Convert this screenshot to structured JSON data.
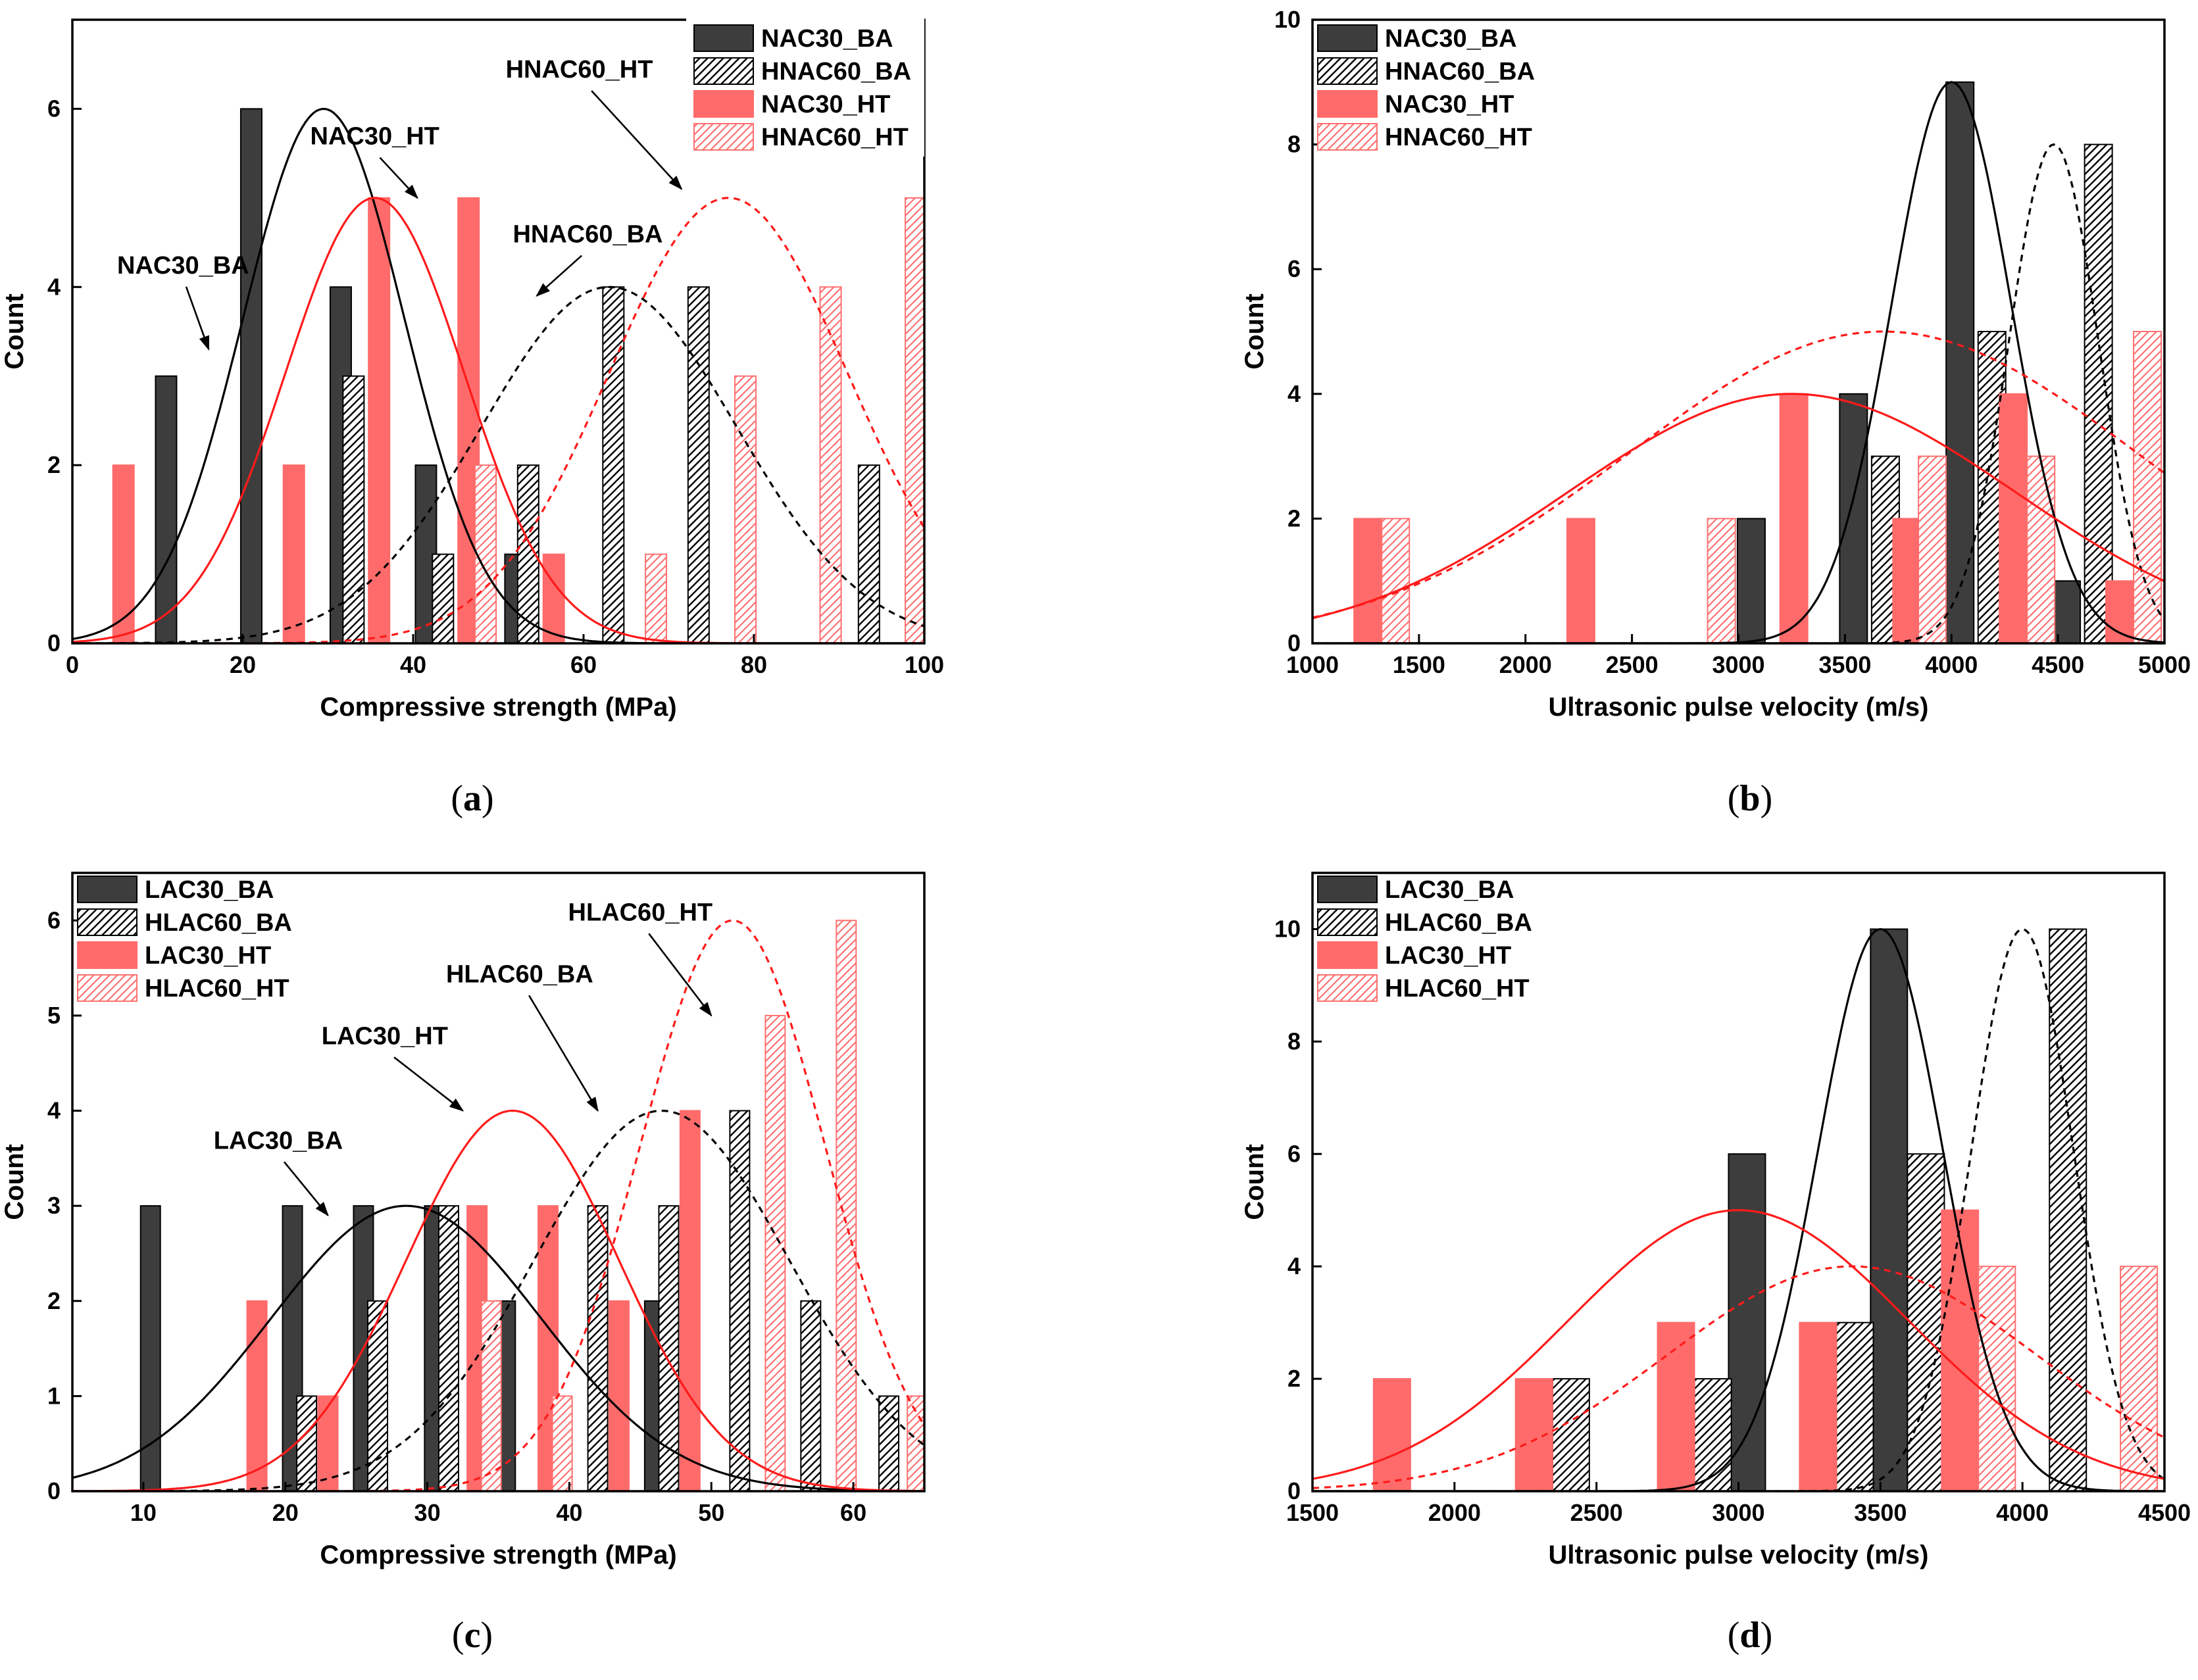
{
  "colors": {
    "dark_bar": "#3d3d3d",
    "red_bar": "#ff6b6b",
    "red_line": "#ff1a1a",
    "red_hatch": "#ff7070",
    "black": "#000000"
  },
  "chart_data": [
    {
      "id": "a",
      "panel_label": {
        "open": "(",
        "letter": "a",
        "close": ")"
      },
      "type": "bar",
      "title": "",
      "xlabel": "Compressive strength (MPa)",
      "ylabel": "Count",
      "xlim": [
        0,
        100
      ],
      "ylim": [
        0,
        7
      ],
      "xticks": [
        0,
        20,
        40,
        60,
        80,
        100
      ],
      "yticks": [
        0,
        2,
        4,
        6
      ],
      "legend_position": "top-right",
      "series": [
        {
          "name": "NAC30_BA",
          "style": "dark",
          "bars": [
            {
              "x": 11,
              "y": 3
            },
            {
              "x": 21,
              "y": 6
            },
            {
              "x": 31.5,
              "y": 4
            },
            {
              "x": 41.5,
              "y": 2
            },
            {
              "x": 52,
              "y": 1
            }
          ],
          "fit": {
            "line": "solid-black",
            "mean": 29.5,
            "sd": 9.5,
            "peak": 6
          }
        },
        {
          "name": "HNAC60_BA",
          "style": "dark-hatch",
          "bars": [
            {
              "x": 33,
              "y": 3
            },
            {
              "x": 43.5,
              "y": 1
            },
            {
              "x": 53.5,
              "y": 2
            },
            {
              "x": 63.5,
              "y": 4
            },
            {
              "x": 73.5,
              "y": 4
            },
            {
              "x": 93.5,
              "y": 2
            }
          ],
          "fit": {
            "line": "dashed-black",
            "mean": 63,
            "sd": 15,
            "peak": 4
          }
        },
        {
          "name": "NAC30_HT",
          "style": "red",
          "bars": [
            {
              "x": 6,
              "y": 2
            },
            {
              "x": 26,
              "y": 2
            },
            {
              "x": 36,
              "y": 5
            },
            {
              "x": 46.5,
              "y": 5
            },
            {
              "x": 56.5,
              "y": 1
            }
          ],
          "fit": {
            "line": "solid-red",
            "mean": 35.5,
            "sd": 10.5,
            "peak": 5
          }
        },
        {
          "name": "HNAC60_HT",
          "style": "red-hatch",
          "bars": [
            {
              "x": 48.5,
              "y": 2
            },
            {
              "x": 68.5,
              "y": 1
            },
            {
              "x": 79,
              "y": 3
            },
            {
              "x": 89,
              "y": 4
            },
            {
              "x": 99,
              "y": 5
            }
          ],
          "fit": {
            "line": "dashed-red",
            "mean": 77,
            "sd": 14,
            "peak": 5
          }
        }
      ],
      "annotations": [
        {
          "text": "NAC30_BA",
          "tx": 13,
          "ty": 4.15,
          "ax": 16,
          "ay": 3.3
        },
        {
          "text": "NAC30_HT",
          "tx": 35.5,
          "ty": 5.6,
          "ax": 40.5,
          "ay": 5.0
        },
        {
          "text": "HNAC60_BA",
          "tx": 60.5,
          "ty": 4.5,
          "ax": 54.5,
          "ay": 3.9
        },
        {
          "text": "HNAC60_HT",
          "tx": 59.5,
          "ty": 6.35,
          "ax": 71.5,
          "ay": 5.1
        }
      ]
    },
    {
      "id": "b",
      "panel_label": {
        "open": "(",
        "letter": "b",
        "close": ")"
      },
      "type": "bar",
      "title": "",
      "xlabel": "Ultrasonic pulse velocity (m/s)",
      "ylabel": "Count",
      "xlim": [
        1000,
        5000
      ],
      "ylim": [
        0,
        10
      ],
      "xticks": [
        1000,
        1500,
        2000,
        2500,
        3000,
        3500,
        4000,
        4500,
        5000
      ],
      "yticks": [
        0,
        2,
        4,
        6,
        8,
        10
      ],
      "legend_position": "top-left",
      "series": [
        {
          "name": "NAC30_BA",
          "style": "dark",
          "bars": [
            {
              "x": 3060,
              "y": 2
            },
            {
              "x": 3540,
              "y": 4
            },
            {
              "x": 4040,
              "y": 9
            },
            {
              "x": 4540,
              "y": 1
            }
          ],
          "fit": {
            "line": "solid-black",
            "mean": 4000,
            "sd": 280,
            "peak": 9
          }
        },
        {
          "name": "HNAC60_BA",
          "style": "dark-hatch",
          "bars": [
            {
              "x": 3690,
              "y": 3
            },
            {
              "x": 4190,
              "y": 5
            },
            {
              "x": 4690,
              "y": 8
            }
          ],
          "fit": {
            "line": "dashed-black",
            "mean": 4480,
            "sd": 210,
            "peak": 8
          }
        },
        {
          "name": "NAC30_HT",
          "style": "red",
          "bars": [
            {
              "x": 1260,
              "y": 2
            },
            {
              "x": 2260,
              "y": 2
            },
            {
              "x": 3260,
              "y": 4
            },
            {
              "x": 3790,
              "y": 2
            },
            {
              "x": 4290,
              "y": 4
            },
            {
              "x": 4790,
              "y": 1
            }
          ],
          "fit": {
            "line": "solid-red",
            "mean": 3250,
            "sd": 1050,
            "peak": 4
          }
        },
        {
          "name": "HNAC60_HT",
          "style": "red-hatch",
          "bars": [
            {
              "x": 1390,
              "y": 2
            },
            {
              "x": 2920,
              "y": 2
            },
            {
              "x": 3910,
              "y": 3
            },
            {
              "x": 4420,
              "y": 3
            },
            {
              "x": 4920,
              "y": 5
            }
          ],
          "fit": {
            "line": "dashed-red",
            "mean": 3680,
            "sd": 1200,
            "peak": 5
          }
        }
      ],
      "annotations": []
    },
    {
      "id": "c",
      "panel_label": {
        "open": "(",
        "letter": "c",
        "close": ")"
      },
      "type": "bar",
      "title": "",
      "xlabel": "Compressive strength (MPa)",
      "ylabel": "Count",
      "xlim": [
        5,
        65
      ],
      "ylim": [
        0,
        6.5
      ],
      "xticks": [
        10,
        20,
        30,
        40,
        50,
        60
      ],
      "yticks": [
        0,
        1,
        2,
        3,
        4,
        5,
        6
      ],
      "legend_position": "top-left",
      "series": [
        {
          "name": "LAC30_BA",
          "style": "dark",
          "bars": [
            {
              "x": 10.5,
              "y": 3
            },
            {
              "x": 20.5,
              "y": 3
            },
            {
              "x": 25.5,
              "y": 3
            },
            {
              "x": 30.5,
              "y": 3
            },
            {
              "x": 35.5,
              "y": 2
            },
            {
              "x": 46,
              "y": 2
            }
          ],
          "fit": {
            "line": "solid-black",
            "mean": 28.5,
            "sd": 9.5,
            "peak": 3
          }
        },
        {
          "name": "HLAC60_BA",
          "style": "dark-hatch",
          "bars": [
            {
              "x": 21.5,
              "y": 1
            },
            {
              "x": 26.5,
              "y": 2
            },
            {
              "x": 31.5,
              "y": 3
            },
            {
              "x": 42,
              "y": 3
            },
            {
              "x": 47,
              "y": 3
            },
            {
              "x": 52,
              "y": 4
            },
            {
              "x": 57,
              "y": 2
            },
            {
              "x": 62.5,
              "y": 1
            }
          ],
          "fit": {
            "line": "dashed-black",
            "mean": 46.5,
            "sd": 9,
            "peak": 4
          }
        },
        {
          "name": "LAC30_HT",
          "style": "red",
          "bars": [
            {
              "x": 18,
              "y": 2
            },
            {
              "x": 23,
              "y": 1
            },
            {
              "x": 33.5,
              "y": 3
            },
            {
              "x": 38.5,
              "y": 3
            },
            {
              "x": 43.5,
              "y": 2
            },
            {
              "x": 48.5,
              "y": 4
            }
          ],
          "fit": {
            "line": "solid-red",
            "mean": 36,
            "sd": 7.5,
            "peak": 4
          }
        },
        {
          "name": "HLAC60_HT",
          "style": "red-hatch",
          "bars": [
            {
              "x": 34.5,
              "y": 2
            },
            {
              "x": 39.5,
              "y": 1
            },
            {
              "x": 54.5,
              "y": 5
            },
            {
              "x": 59.5,
              "y": 6
            },
            {
              "x": 64.5,
              "y": 1
            }
          ],
          "fit": {
            "line": "dashed-red",
            "mean": 51.5,
            "sd": 6.5,
            "peak": 6
          }
        }
      ],
      "annotations": [
        {
          "text": "LAC30_BA",
          "tx": 19.5,
          "ty": 3.6,
          "ax": 23,
          "ay": 2.9
        },
        {
          "text": "LAC30_HT",
          "tx": 27,
          "ty": 4.7,
          "ax": 32.5,
          "ay": 4.0
        },
        {
          "text": "HLAC60_BA",
          "tx": 36.5,
          "ty": 5.35,
          "ax": 42,
          "ay": 4.0
        },
        {
          "text": "HLAC60_HT",
          "tx": 45,
          "ty": 6.0,
          "ax": 50,
          "ay": 5.0
        }
      ]
    },
    {
      "id": "d",
      "panel_label": {
        "open": "(",
        "letter": "d",
        "close": ")"
      },
      "type": "bar",
      "title": "",
      "xlabel": "Ultrasonic pulse velocity (m/s)",
      "ylabel": "Count",
      "xlim": [
        1500,
        4500
      ],
      "ylim": [
        0,
        11
      ],
      "xticks": [
        1500,
        2000,
        2500,
        3000,
        3500,
        4000,
        4500
      ],
      "yticks": [
        0,
        2,
        4,
        6,
        8,
        10
      ],
      "legend_position": "top-left",
      "series": [
        {
          "name": "LAC30_BA",
          "style": "dark",
          "bars": [
            {
              "x": 3030,
              "y": 6
            },
            {
              "x": 3530,
              "y": 10
            }
          ],
          "fit": {
            "line": "solid-black",
            "mean": 3500,
            "sd": 220,
            "peak": 10
          }
        },
        {
          "name": "HLAC60_BA",
          "style": "dark-hatch",
          "bars": [
            {
              "x": 2410,
              "y": 2
            },
            {
              "x": 2910,
              "y": 2
            },
            {
              "x": 3410,
              "y": 3
            },
            {
              "x": 3660,
              "y": 6
            },
            {
              "x": 4160,
              "y": 10
            }
          ],
          "fit": {
            "line": "dashed-black",
            "mean": 4000,
            "sd": 180,
            "peak": 10
          }
        },
        {
          "name": "LAC30_HT",
          "style": "red",
          "bars": [
            {
              "x": 1780,
              "y": 2
            },
            {
              "x": 2280,
              "y": 2
            },
            {
              "x": 2780,
              "y": 3
            },
            {
              "x": 3280,
              "y": 3
            },
            {
              "x": 3780,
              "y": 5
            }
          ],
          "fit": {
            "line": "solid-red",
            "mean": 3000,
            "sd": 600,
            "peak": 5
          }
        },
        {
          "name": "HLAC60_HT",
          "style": "red-hatch",
          "bars": [
            {
              "x": 3910,
              "y": 4
            },
            {
              "x": 4410,
              "y": 4
            }
          ],
          "fit": {
            "line": "dashed-red",
            "mean": 3400,
            "sd": 650,
            "peak": 4
          }
        }
      ],
      "annotations": []
    }
  ]
}
